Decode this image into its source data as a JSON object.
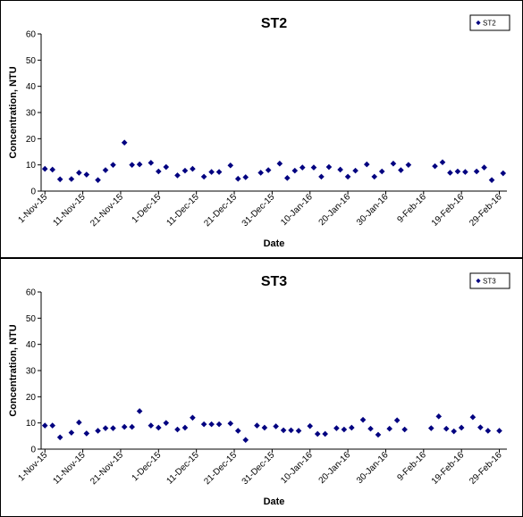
{
  "chart_data": [
    {
      "type": "scatter",
      "title": "ST2",
      "xlabel": "Date",
      "ylabel": "Concentration, NTU",
      "ylim": [
        0,
        60
      ],
      "yticks": [
        0,
        10,
        20,
        30,
        40,
        50,
        60
      ],
      "xlim": [
        "2015-10-31",
        "2016-03-02"
      ],
      "xticks": [
        "1-Nov-15",
        "11-Nov-15",
        "21-Nov-15",
        "1-Dec-15",
        "11-Dec-15",
        "21-Dec-15",
        "31-Dec-15",
        "10-Jan-16",
        "20-Jan-16",
        "30-Jan-16",
        "9-Feb-16",
        "19-Feb-16",
        "29-Feb-16"
      ],
      "xtick_dates": [
        "2015-11-01",
        "2015-11-11",
        "2015-11-21",
        "2015-12-01",
        "2015-12-11",
        "2015-12-21",
        "2015-12-31",
        "2016-01-10",
        "2016-01-20",
        "2016-01-30",
        "2016-02-09",
        "2016-02-19",
        "2016-02-29"
      ],
      "grid": false,
      "legend_position": "top-right",
      "series": [
        {
          "name": "ST2",
          "color": "#000080",
          "marker": "diamond",
          "points": [
            [
              "2015-11-01",
              8.5
            ],
            [
              "2015-11-03",
              8.2
            ],
            [
              "2015-11-05",
              4.5
            ],
            [
              "2015-11-08",
              4.6
            ],
            [
              "2015-11-10",
              7.0
            ],
            [
              "2015-11-12",
              6.3
            ],
            [
              "2015-11-15",
              4.2
            ],
            [
              "2015-11-17",
              8.0
            ],
            [
              "2015-11-19",
              10.0
            ],
            [
              "2015-11-22",
              18.5
            ],
            [
              "2015-11-24",
              10.0
            ],
            [
              "2015-11-26",
              10.2
            ],
            [
              "2015-11-29",
              10.8
            ],
            [
              "2015-12-01",
              7.5
            ],
            [
              "2015-12-03",
              9.2
            ],
            [
              "2015-12-06",
              6.0
            ],
            [
              "2015-12-08",
              7.8
            ],
            [
              "2015-12-10",
              8.5
            ],
            [
              "2015-12-13",
              5.5
            ],
            [
              "2015-12-15",
              7.3
            ],
            [
              "2015-12-17",
              7.3
            ],
            [
              "2015-12-20",
              9.8
            ],
            [
              "2015-12-22",
              4.7
            ],
            [
              "2015-12-24",
              5.3
            ],
            [
              "2015-12-28",
              7.0
            ],
            [
              "2015-12-30",
              8.0
            ],
            [
              "2016-01-02",
              10.5
            ],
            [
              "2016-01-04",
              5.0
            ],
            [
              "2016-01-06",
              7.8
            ],
            [
              "2016-01-08",
              9.0
            ],
            [
              "2016-01-11",
              9.0
            ],
            [
              "2016-01-13",
              5.5
            ],
            [
              "2016-01-15",
              9.2
            ],
            [
              "2016-01-18",
              8.2
            ],
            [
              "2016-01-20",
              5.5
            ],
            [
              "2016-01-22",
              7.8
            ],
            [
              "2016-01-25",
              10.2
            ],
            [
              "2016-01-27",
              5.5
            ],
            [
              "2016-01-29",
              7.5
            ],
            [
              "2016-02-01",
              10.5
            ],
            [
              "2016-02-03",
              8.0
            ],
            [
              "2016-02-05",
              10.0
            ],
            [
              "2016-02-12",
              9.5
            ],
            [
              "2016-02-14",
              11.0
            ],
            [
              "2016-02-16",
              7.0
            ],
            [
              "2016-02-18",
              7.5
            ],
            [
              "2016-02-20",
              7.3
            ],
            [
              "2016-02-23",
              7.5
            ],
            [
              "2016-02-25",
              9.0
            ],
            [
              "2016-02-27",
              4.2
            ],
            [
              "2016-03-01",
              6.8
            ]
          ]
        }
      ]
    },
    {
      "type": "scatter",
      "title": "ST3",
      "xlabel": "Date",
      "ylabel": "Concentration, NTU",
      "ylim": [
        0,
        60
      ],
      "yticks": [
        0,
        10,
        20,
        30,
        40,
        50,
        60
      ],
      "xlim": [
        "2015-10-31",
        "2016-03-02"
      ],
      "xticks": [
        "1-Nov-15",
        "11-Nov-15",
        "21-Nov-15",
        "1-Dec-15",
        "11-Dec-15",
        "21-Dec-15",
        "31-Dec-15",
        "10-Jan-16",
        "20-Jan-16",
        "30-Jan-16",
        "9-Feb-16",
        "19-Feb-16",
        "29-Feb-16"
      ],
      "xtick_dates": [
        "2015-11-01",
        "2015-11-11",
        "2015-11-21",
        "2015-12-01",
        "2015-12-11",
        "2015-12-21",
        "2015-12-31",
        "2016-01-10",
        "2016-01-20",
        "2016-01-30",
        "2016-02-09",
        "2016-02-19",
        "2016-02-29"
      ],
      "grid": false,
      "legend_position": "top-right",
      "series": [
        {
          "name": "ST3",
          "color": "#000080",
          "marker": "diamond",
          "points": [
            [
              "2015-11-01",
              9.0
            ],
            [
              "2015-11-03",
              9.0
            ],
            [
              "2015-11-05",
              4.5
            ],
            [
              "2015-11-08",
              6.3
            ],
            [
              "2015-11-10",
              10.2
            ],
            [
              "2015-11-12",
              6.0
            ],
            [
              "2015-11-15",
              7.0
            ],
            [
              "2015-11-17",
              8.0
            ],
            [
              "2015-11-19",
              8.0
            ],
            [
              "2015-11-22",
              8.5
            ],
            [
              "2015-11-24",
              8.5
            ],
            [
              "2015-11-26",
              14.5
            ],
            [
              "2015-11-29",
              9.0
            ],
            [
              "2015-12-01",
              8.2
            ],
            [
              "2015-12-03",
              10.0
            ],
            [
              "2015-12-06",
              7.5
            ],
            [
              "2015-12-08",
              8.2
            ],
            [
              "2015-12-10",
              12.0
            ],
            [
              "2015-12-13",
              9.5
            ],
            [
              "2015-12-15",
              9.5
            ],
            [
              "2015-12-17",
              9.5
            ],
            [
              "2015-12-20",
              9.8
            ],
            [
              "2015-12-22",
              7.0
            ],
            [
              "2015-12-24",
              3.5
            ],
            [
              "2015-12-27",
              9.0
            ],
            [
              "2015-12-29",
              8.2
            ],
            [
              "2016-01-01",
              8.7
            ],
            [
              "2016-01-03",
              7.2
            ],
            [
              "2016-01-05",
              7.2
            ],
            [
              "2016-01-07",
              7.0
            ],
            [
              "2016-01-10",
              8.8
            ],
            [
              "2016-01-12",
              5.8
            ],
            [
              "2016-01-14",
              5.8
            ],
            [
              "2016-01-17",
              8.0
            ],
            [
              "2016-01-19",
              7.5
            ],
            [
              "2016-01-21",
              8.2
            ],
            [
              "2016-01-24",
              11.2
            ],
            [
              "2016-01-26",
              7.8
            ],
            [
              "2016-01-28",
              5.5
            ],
            [
              "2016-01-31",
              7.8
            ],
            [
              "2016-02-02",
              11.0
            ],
            [
              "2016-02-04",
              7.5
            ],
            [
              "2016-02-11",
              8.0
            ],
            [
              "2016-02-13",
              12.5
            ],
            [
              "2016-02-15",
              7.8
            ],
            [
              "2016-02-17",
              6.8
            ],
            [
              "2016-02-19",
              8.2
            ],
            [
              "2016-02-22",
              12.2
            ],
            [
              "2016-02-24",
              8.3
            ],
            [
              "2016-02-26",
              7.0
            ],
            [
              "2016-02-29",
              7.0
            ]
          ]
        }
      ]
    }
  ]
}
